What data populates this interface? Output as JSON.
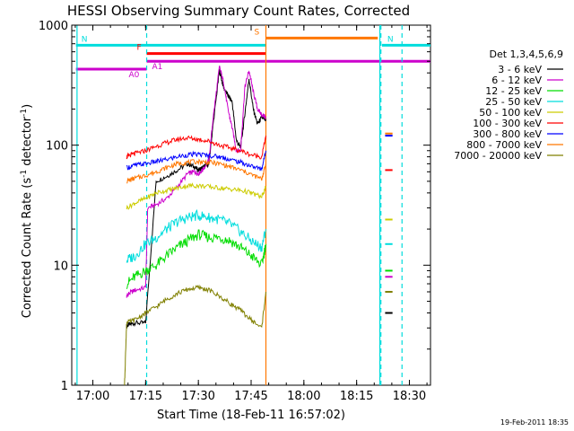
{
  "chart_data": {
    "type": "line",
    "title": "HESSI Observing Summary Count Rates, Corrected",
    "xlabel": "Start Time (18-Feb-11 16:57:02)",
    "ylabel": "Corrected Count Rate (s⁻¹ detector⁻¹)",
    "ylabel_text": "Corrected Count Rate (s",
    "ylabel_mid": " detector",
    "ylabel_close": ")",
    "ylabel_exp": "-1",
    "yscale": "log",
    "xlim_min": [
      16.9,
      18.6
    ],
    "ylim": [
      1,
      1000
    ],
    "x_ticks": [
      "17:00",
      "17:15",
      "17:30",
      "17:45",
      "18:00",
      "18:15",
      "18:30"
    ],
    "y_ticks": [
      "1000",
      "100",
      "10",
      "1"
    ],
    "timestamp": "19-Feb-2011 18:35",
    "legend": {
      "title": "Det 1,3,4,5,6,9",
      "items": [
        {
          "label": "3 - 6 keV",
          "color": "#000000"
        },
        {
          "label": "6 - 12 keV",
          "color": "#cc00cc"
        },
        {
          "label": "12 - 25 keV",
          "color": "#00dd00"
        },
        {
          "label": "25 - 50 keV",
          "color": "#00dddd"
        },
        {
          "label": "50 - 100 keV",
          "color": "#cccc00"
        },
        {
          "label": "100 - 300 keV",
          "color": "#ff0000"
        },
        {
          "label": "300 - 800 keV",
          "color": "#0000ff"
        },
        {
          "label": "800 - 7000 keV",
          "color": "#ff7700"
        },
        {
          "label": "7000 - 20000 keV",
          "color": "#808000"
        }
      ]
    },
    "flag_bars": [
      {
        "label": "N",
        "color": "#00dddd",
        "x": [
          16.92,
          17.82
        ],
        "y": 680
      },
      {
        "label": "N",
        "color": "#00dddd",
        "x": [
          18.37,
          18.6
        ],
        "y": 680
      },
      {
        "label": "F",
        "color": "#ff0000",
        "x": [
          17.255,
          17.82
        ],
        "y": 580
      },
      {
        "label": "S",
        "color": "#ff7700",
        "x": [
          17.82,
          18.35
        ],
        "y": 780
      },
      {
        "label": "A0",
        "color": "#cc00cc",
        "x": [
          16.92,
          17.255
        ],
        "y": 430
      },
      {
        "label": "A1",
        "color": "#cc00cc",
        "x": [
          17.255,
          18.6
        ],
        "y": 500
      }
    ],
    "vlines": [
      {
        "x": 17.255,
        "color": "#00dddd",
        "style": "dashed"
      },
      {
        "x": 18.365,
        "color": "#00dddd",
        "style": "dashed"
      },
      {
        "x": 18.465,
        "color": "#00dddd",
        "style": "dashed"
      },
      {
        "x": 16.925,
        "color": "#00dddd",
        "style": "solid"
      },
      {
        "x": 17.82,
        "color": "#ff7700",
        "style": "solid"
      },
      {
        "x": 18.36,
        "color": "#00dddd",
        "style": "solid"
      }
    ],
    "series": [
      {
        "name": "3 - 6 keV",
        "color": "#000000",
        "x": [
          17.16,
          17.17,
          17.2,
          17.25,
          17.3,
          17.35,
          17.4,
          17.45,
          17.48,
          17.5,
          17.52,
          17.55,
          17.57,
          17.6,
          17.62,
          17.64,
          17.66,
          17.68,
          17.7,
          17.72,
          17.74,
          17.76,
          17.78,
          17.8,
          17.82
        ],
        "y": [
          3.1,
          3.2,
          3.3,
          3.3,
          50,
          55,
          62,
          70,
          66,
          62,
          65,
          70,
          150,
          420,
          300,
          260,
          230,
          110,
          95,
          180,
          360,
          200,
          150,
          170,
          160
        ]
      },
      {
        "name": "6 - 12 keV",
        "color": "#cc00cc",
        "x": [
          17.16,
          17.17,
          17.2,
          17.25,
          17.26,
          17.3,
          17.35,
          17.4,
          17.45,
          17.48,
          17.5,
          17.52,
          17.55,
          17.57,
          17.6,
          17.62,
          17.64,
          17.66,
          17.68,
          17.7,
          17.72,
          17.74,
          17.76,
          17.78,
          17.8,
          17.82
        ],
        "y": [
          5.5,
          5.8,
          6.2,
          6.5,
          30,
          32,
          36,
          45,
          58,
          60,
          58,
          62,
          75,
          170,
          450,
          330,
          200,
          140,
          90,
          90,
          300,
          420,
          280,
          200,
          180,
          170
        ]
      },
      {
        "name": "12 - 25 keV",
        "color": "#00dd00",
        "x": [
          17.16,
          17.2,
          17.25,
          17.3,
          17.35,
          17.4,
          17.45,
          17.5,
          17.55,
          17.6,
          17.65,
          17.7,
          17.75,
          17.8,
          17.82
        ],
        "y": [
          7,
          8,
          9,
          10,
          12,
          14,
          16,
          18,
          17,
          17,
          16,
          14,
          12,
          10,
          15
        ]
      },
      {
        "name": "25 - 50 keV",
        "color": "#00dddd",
        "x": [
          17.16,
          17.2,
          17.25,
          17.3,
          17.35,
          17.4,
          17.45,
          17.5,
          17.55,
          17.6,
          17.65,
          17.7,
          17.75,
          17.8,
          17.82
        ],
        "y": [
          11,
          12,
          15,
          17,
          20,
          23,
          25,
          26,
          25,
          24,
          22,
          19,
          16,
          14,
          20
        ]
      },
      {
        "name": "50 - 100 keV",
        "color": "#cccc00",
        "x": [
          17.16,
          17.2,
          17.25,
          17.3,
          17.35,
          17.4,
          17.45,
          17.5,
          17.55,
          17.6,
          17.65,
          17.7,
          17.75,
          17.8,
          17.82
        ],
        "y": [
          30,
          33,
          36,
          40,
          42,
          44,
          46,
          46,
          45,
          44,
          43,
          42,
          40,
          37,
          45
        ]
      },
      {
        "name": "100 - 300 keV",
        "color": "#ff0000",
        "x": [
          17.16,
          17.17,
          17.2,
          17.25,
          17.3,
          17.35,
          17.4,
          17.45,
          17.5,
          17.55,
          17.6,
          17.65,
          17.7,
          17.75,
          17.8,
          17.82
        ],
        "y": [
          80,
          82,
          85,
          90,
          98,
          105,
          112,
          115,
          112,
          108,
          100,
          95,
          90,
          83,
          80,
          120
        ]
      },
      {
        "name": "300 - 800 keV",
        "color": "#0000ff",
        "x": [
          17.16,
          17.2,
          17.25,
          17.3,
          17.35,
          17.4,
          17.45,
          17.5,
          17.55,
          17.6,
          17.65,
          17.7,
          17.75,
          17.8,
          17.82
        ],
        "y": [
          65,
          68,
          70,
          73,
          76,
          80,
          83,
          84,
          82,
          80,
          76,
          72,
          67,
          63,
          90
        ]
      },
      {
        "name": "800 - 7000 keV",
        "color": "#ff7700",
        "x": [
          17.16,
          17.2,
          17.25,
          17.3,
          17.35,
          17.4,
          17.45,
          17.5,
          17.55,
          17.6,
          17.65,
          17.7,
          17.75,
          17.8,
          17.82
        ],
        "y": [
          50,
          53,
          56,
          60,
          65,
          70,
          72,
          73,
          72,
          70,
          66,
          62,
          57,
          52,
          70
        ]
      },
      {
        "name": "7000 - 20000 keV",
        "color": "#808000",
        "x": [
          17.15,
          17.16,
          17.2,
          17.25,
          17.3,
          17.35,
          17.4,
          17.45,
          17.5,
          17.55,
          17.6,
          17.65,
          17.7,
          17.75,
          17.8,
          17.82
        ],
        "y": [
          1.0,
          3.3,
          3.5,
          4,
          4.5,
          5.2,
          5.8,
          6.3,
          6.5,
          6.2,
          5.5,
          4.8,
          4.2,
          3.5,
          3.0,
          6.0
        ]
      }
    ],
    "late_segment": {
      "x": [
        18.385,
        18.42
      ],
      "values": [
        {
          "color": "#ff7700",
          "y": 125
        },
        {
          "color": "#0000ff",
          "y": 120
        },
        {
          "color": "#ff0000",
          "y": 62
        },
        {
          "color": "#cccc00",
          "y": 24
        },
        {
          "color": "#00dddd",
          "y": 15
        },
        {
          "color": "#00dd00",
          "y": 9
        },
        {
          "color": "#cc00cc",
          "y": 8
        },
        {
          "color": "#808000",
          "y": 6
        },
        {
          "color": "#000000",
          "y": 4
        }
      ]
    }
  }
}
